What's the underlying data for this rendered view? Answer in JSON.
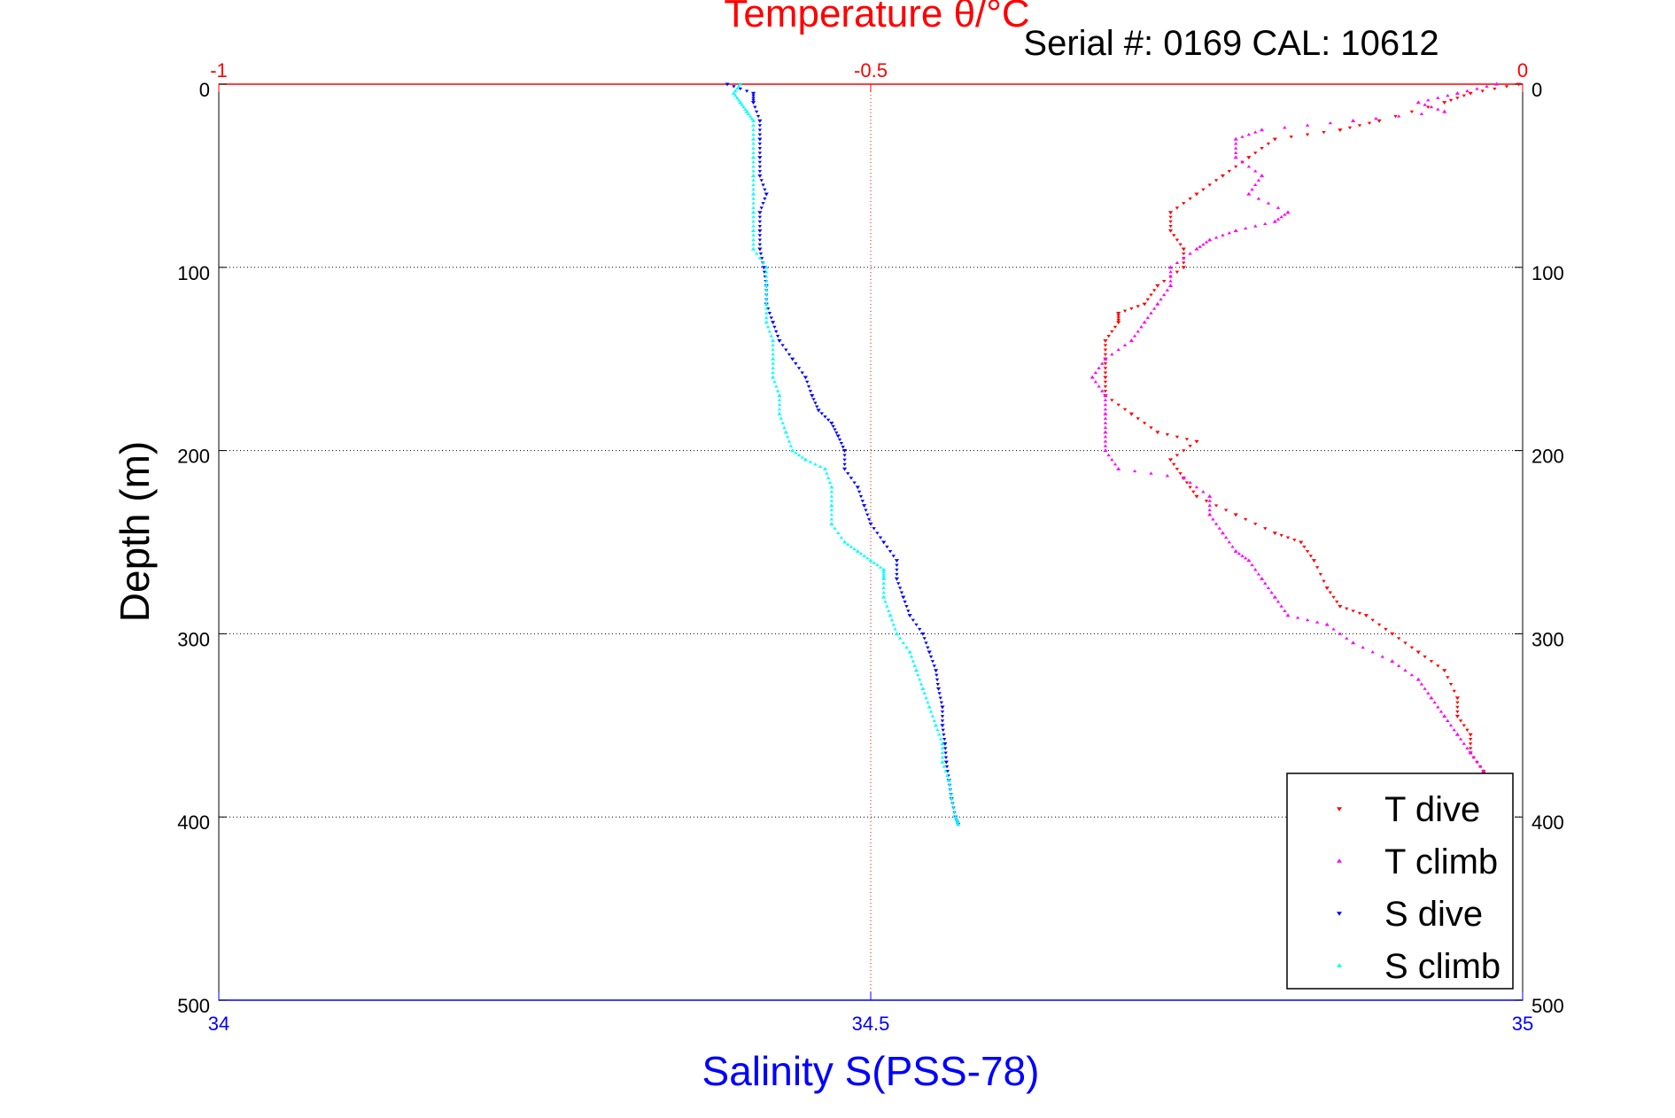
{
  "chart_data": {
    "type": "scatter",
    "title": "Temperature θ/°C",
    "subtitle": "Serial #: 0169 CAL: 10612",
    "xlabel": "Salinity S(PSS-78)",
    "ylabel": "Depth (m)",
    "ylim": [
      0,
      500
    ],
    "y_reversed": true,
    "y_ticks": [
      0,
      100,
      200,
      300,
      400,
      500
    ],
    "y_tick_labels": [
      "0",
      "100",
      "200",
      "300",
      "400",
      "500"
    ],
    "xlim_salinity": [
      34,
      35
    ],
    "x_ticks_salinity": [
      34,
      34.5,
      35
    ],
    "x_tick_labels_salinity": [
      "34",
      "34.5",
      "35"
    ],
    "xlim_temperature": [
      -1,
      0
    ],
    "x_ticks_temperature": [
      -1,
      -0.5,
      0
    ],
    "x_tick_labels_temperature": [
      "-1",
      "-0.5",
      "0"
    ],
    "grid": true,
    "legend_position": "bottom-right",
    "colors": {
      "temperature_axis": "#ff0000",
      "salinity_axis": "#0000ff",
      "grid": "#000000",
      "t_dive": "#ff0000",
      "t_climb": "#ff00ff",
      "s_dive": "#0000ff",
      "s_climb": "#00ffff"
    },
    "series": [
      {
        "name": "T dive",
        "axis": "temperature",
        "color": "#ff0000",
        "marker": "triangle-down",
        "points": [
          [
            -0.003,
            0
          ],
          [
            -0.04,
            5
          ],
          [
            -0.06,
            10
          ],
          [
            -0.11,
            20
          ],
          [
            -0.14,
            25
          ],
          [
            -0.19,
            30
          ],
          [
            -0.21,
            40
          ],
          [
            -0.23,
            50
          ],
          [
            -0.25,
            60
          ],
          [
            -0.27,
            70
          ],
          [
            -0.27,
            80
          ],
          [
            -0.26,
            90
          ],
          [
            -0.26,
            100
          ],
          [
            -0.28,
            110
          ],
          [
            -0.29,
            120
          ],
          [
            -0.31,
            125
          ],
          [
            -0.31,
            130
          ],
          [
            -0.32,
            140
          ],
          [
            -0.32,
            150
          ],
          [
            -0.32,
            160
          ],
          [
            -0.32,
            170
          ],
          [
            -0.3,
            180
          ],
          [
            -0.28,
            190
          ],
          [
            -0.25,
            195
          ],
          [
            -0.27,
            205
          ],
          [
            -0.26,
            215
          ],
          [
            -0.25,
            225
          ],
          [
            -0.22,
            235
          ],
          [
            -0.19,
            245
          ],
          [
            -0.17,
            250
          ],
          [
            -0.16,
            260
          ],
          [
            -0.15,
            275
          ],
          [
            -0.14,
            285
          ],
          [
            -0.12,
            290
          ],
          [
            -0.1,
            300
          ],
          [
            -0.08,
            310
          ],
          [
            -0.06,
            320
          ],
          [
            -0.05,
            335
          ],
          [
            -0.05,
            345
          ],
          [
            -0.04,
            355
          ],
          [
            -0.04,
            365
          ],
          [
            -0.03,
            375
          ],
          [
            -0.03,
            380
          ],
          [
            -0.02,
            385
          ],
          [
            -0.02,
            390
          ],
          [
            -0.01,
            395
          ],
          [
            -0.01,
            400
          ],
          [
            -0.01,
            404
          ]
        ]
      },
      {
        "name": "T climb",
        "axis": "temperature",
        "color": "#ff00ff",
        "marker": "triangle-up",
        "points": [
          [
            -0.02,
            0
          ],
          [
            -0.05,
            5
          ],
          [
            -0.08,
            10
          ],
          [
            -0.06,
            15
          ],
          [
            -0.13,
            20
          ],
          [
            -0.2,
            25
          ],
          [
            -0.22,
            30
          ],
          [
            -0.22,
            40
          ],
          [
            -0.2,
            50
          ],
          [
            -0.21,
            60
          ],
          [
            -0.18,
            70
          ],
          [
            -0.19,
            75
          ],
          [
            -0.22,
            80
          ],
          [
            -0.24,
            85
          ],
          [
            -0.25,
            90
          ],
          [
            -0.27,
            100
          ],
          [
            -0.27,
            110
          ],
          [
            -0.28,
            120
          ],
          [
            -0.29,
            130
          ],
          [
            -0.3,
            140
          ],
          [
            -0.32,
            150
          ],
          [
            -0.33,
            160
          ],
          [
            -0.32,
            170
          ],
          [
            -0.32,
            180
          ],
          [
            -0.32,
            190
          ],
          [
            -0.32,
            200
          ],
          [
            -0.31,
            210
          ],
          [
            -0.26,
            215
          ],
          [
            -0.24,
            225
          ],
          [
            -0.24,
            235
          ],
          [
            -0.23,
            245
          ],
          [
            -0.22,
            255
          ],
          [
            -0.21,
            260
          ],
          [
            -0.2,
            270
          ],
          [
            -0.19,
            280
          ],
          [
            -0.18,
            290
          ],
          [
            -0.15,
            295
          ],
          [
            -0.13,
            305
          ],
          [
            -0.1,
            315
          ],
          [
            -0.08,
            325
          ],
          [
            -0.07,
            335
          ],
          [
            -0.06,
            345
          ],
          [
            -0.05,
            355
          ],
          [
            -0.04,
            365
          ],
          [
            -0.03,
            375
          ],
          [
            -0.02,
            385
          ],
          [
            -0.02,
            395
          ],
          [
            -0.01,
            400
          ],
          [
            -0.01,
            405
          ]
        ]
      },
      {
        "name": "S dive",
        "axis": "salinity",
        "color": "#0000ff",
        "marker": "triangle-down",
        "points": [
          [
            34.39,
            0
          ],
          [
            34.41,
            5
          ],
          [
            34.41,
            10
          ],
          [
            34.415,
            20
          ],
          [
            34.415,
            30
          ],
          [
            34.415,
            40
          ],
          [
            34.415,
            50
          ],
          [
            34.42,
            60
          ],
          [
            34.415,
            70
          ],
          [
            34.415,
            80
          ],
          [
            34.415,
            90
          ],
          [
            34.418,
            100
          ],
          [
            34.42,
            110
          ],
          [
            34.42,
            120
          ],
          [
            34.425,
            130
          ],
          [
            34.43,
            140
          ],
          [
            34.44,
            150
          ],
          [
            34.45,
            160
          ],
          [
            34.455,
            170
          ],
          [
            34.46,
            178
          ],
          [
            34.47,
            185
          ],
          [
            34.475,
            192
          ],
          [
            34.48,
            200
          ],
          [
            34.48,
            210
          ],
          [
            34.49,
            220
          ],
          [
            34.495,
            230
          ],
          [
            34.5,
            240
          ],
          [
            34.51,
            250
          ],
          [
            34.52,
            260
          ],
          [
            34.52,
            270
          ],
          [
            34.525,
            280
          ],
          [
            34.53,
            290
          ],
          [
            34.54,
            300
          ],
          [
            34.545,
            310
          ],
          [
            34.55,
            320
          ],
          [
            34.552,
            330
          ],
          [
            34.555,
            340
          ],
          [
            34.555,
            350
          ],
          [
            34.557,
            360
          ],
          [
            34.558,
            370
          ],
          [
            34.56,
            380
          ],
          [
            34.562,
            390
          ],
          [
            34.565,
            400
          ],
          [
            34.567,
            404
          ]
        ]
      },
      {
        "name": "S climb",
        "axis": "salinity",
        "color": "#00ffff",
        "marker": "triangle-up",
        "points": [
          [
            34.4,
            0
          ],
          [
            34.395,
            5
          ],
          [
            34.4,
            10
          ],
          [
            34.405,
            15
          ],
          [
            34.41,
            20
          ],
          [
            34.41,
            30
          ],
          [
            34.41,
            40
          ],
          [
            34.41,
            50
          ],
          [
            34.41,
            60
          ],
          [
            34.41,
            70
          ],
          [
            34.41,
            80
          ],
          [
            34.41,
            90
          ],
          [
            34.42,
            100
          ],
          [
            34.42,
            110
          ],
          [
            34.42,
            120
          ],
          [
            34.42,
            130
          ],
          [
            34.425,
            140
          ],
          [
            34.425,
            150
          ],
          [
            34.425,
            160
          ],
          [
            34.43,
            170
          ],
          [
            34.43,
            180
          ],
          [
            34.435,
            190
          ],
          [
            34.44,
            200
          ],
          [
            34.45,
            205
          ],
          [
            34.465,
            210
          ],
          [
            34.47,
            220
          ],
          [
            34.47,
            230
          ],
          [
            34.47,
            240
          ],
          [
            34.48,
            250
          ],
          [
            34.49,
            255
          ],
          [
            34.5,
            260
          ],
          [
            34.51,
            265
          ],
          [
            34.51,
            270
          ],
          [
            34.51,
            280
          ],
          [
            34.515,
            290
          ],
          [
            34.52,
            300
          ],
          [
            34.53,
            310
          ],
          [
            34.535,
            320
          ],
          [
            34.54,
            330
          ],
          [
            34.545,
            340
          ],
          [
            34.55,
            350
          ],
          [
            34.555,
            360
          ],
          [
            34.555,
            370
          ],
          [
            34.56,
            380
          ],
          [
            34.562,
            390
          ],
          [
            34.565,
            400
          ],
          [
            34.567,
            404
          ]
        ]
      }
    ]
  }
}
